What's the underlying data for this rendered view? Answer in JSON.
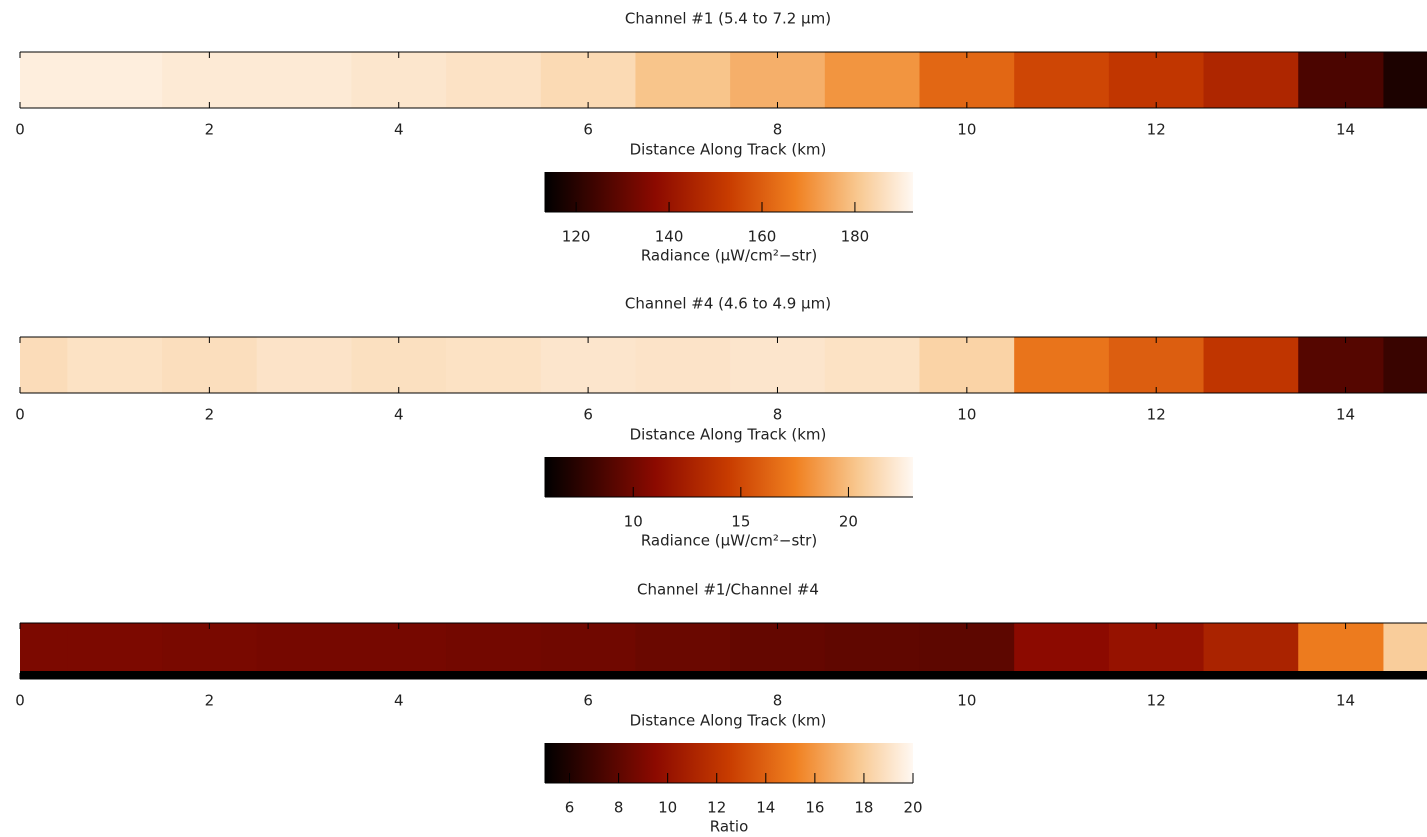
{
  "chart_data": [
    {
      "type": "heatmap",
      "title": "Channel #1  (5.4 to 7.2 μm)",
      "xlabel": "Distance Along Track  (km)",
      "xlim": [
        0,
        14.86
      ],
      "xticks": [
        0,
        2,
        4,
        6,
        8,
        10,
        12,
        14
      ],
      "x": [
        0,
        1,
        2,
        3,
        4,
        5,
        6,
        7,
        8,
        9,
        10,
        11,
        12,
        13,
        14,
        14.8
      ],
      "values": [
        190,
        190,
        189,
        189,
        188,
        187,
        185,
        180,
        176,
        171,
        162,
        155,
        151,
        146,
        126,
        118
      ],
      "colorbar": {
        "clim": [
          113.3,
          192.5
        ],
        "ticks": [
          120,
          140,
          160,
          180
        ],
        "label": "Radiance  (μW/cm²−str)"
      }
    },
    {
      "type": "heatmap",
      "title": "Channel #4  (4.6 to 4.9 μm)",
      "xlabel": "Distance Along Track  (km)",
      "xlim": [
        0,
        14.86
      ],
      "xticks": [
        0,
        2,
        4,
        6,
        8,
        10,
        12,
        14
      ],
      "x": [
        0,
        1,
        2,
        3,
        4,
        5,
        6,
        7,
        8,
        9,
        10,
        11,
        12,
        13,
        14,
        14.8
      ],
      "values": [
        21.5,
        21.8,
        21.6,
        21.9,
        21.7,
        21.8,
        22,
        21.9,
        22,
        21.8,
        21,
        17,
        16,
        14,
        9,
        8
      ],
      "colorbar": {
        "clim": [
          5.9,
          23
        ],
        "ticks": [
          10,
          15,
          20
        ],
        "label": "Radiance  (μW/cm²−str)"
      }
    },
    {
      "type": "heatmap",
      "title": "Channel #1/Channel #4",
      "xlabel": "Distance Along Track  (km)",
      "xlim": [
        0,
        14.86
      ],
      "xticks": [
        0,
        2,
        4,
        6,
        8,
        10,
        12,
        14
      ],
      "x": [
        0,
        1,
        2,
        3,
        4,
        5,
        6,
        7,
        8,
        9,
        10,
        11,
        12,
        13,
        14,
        14.8
      ],
      "values": [
        9,
        9,
        8.9,
        8.8,
        8.8,
        8.7,
        8.6,
        8.4,
        8.2,
        8.1,
        8,
        9.5,
        10,
        11,
        15,
        18
      ],
      "colorbar": {
        "clim": [
          5,
          20
        ],
        "ticks": [
          6,
          8,
          10,
          12,
          14,
          16,
          18,
          20
        ],
        "label": "Ratio"
      }
    }
  ]
}
